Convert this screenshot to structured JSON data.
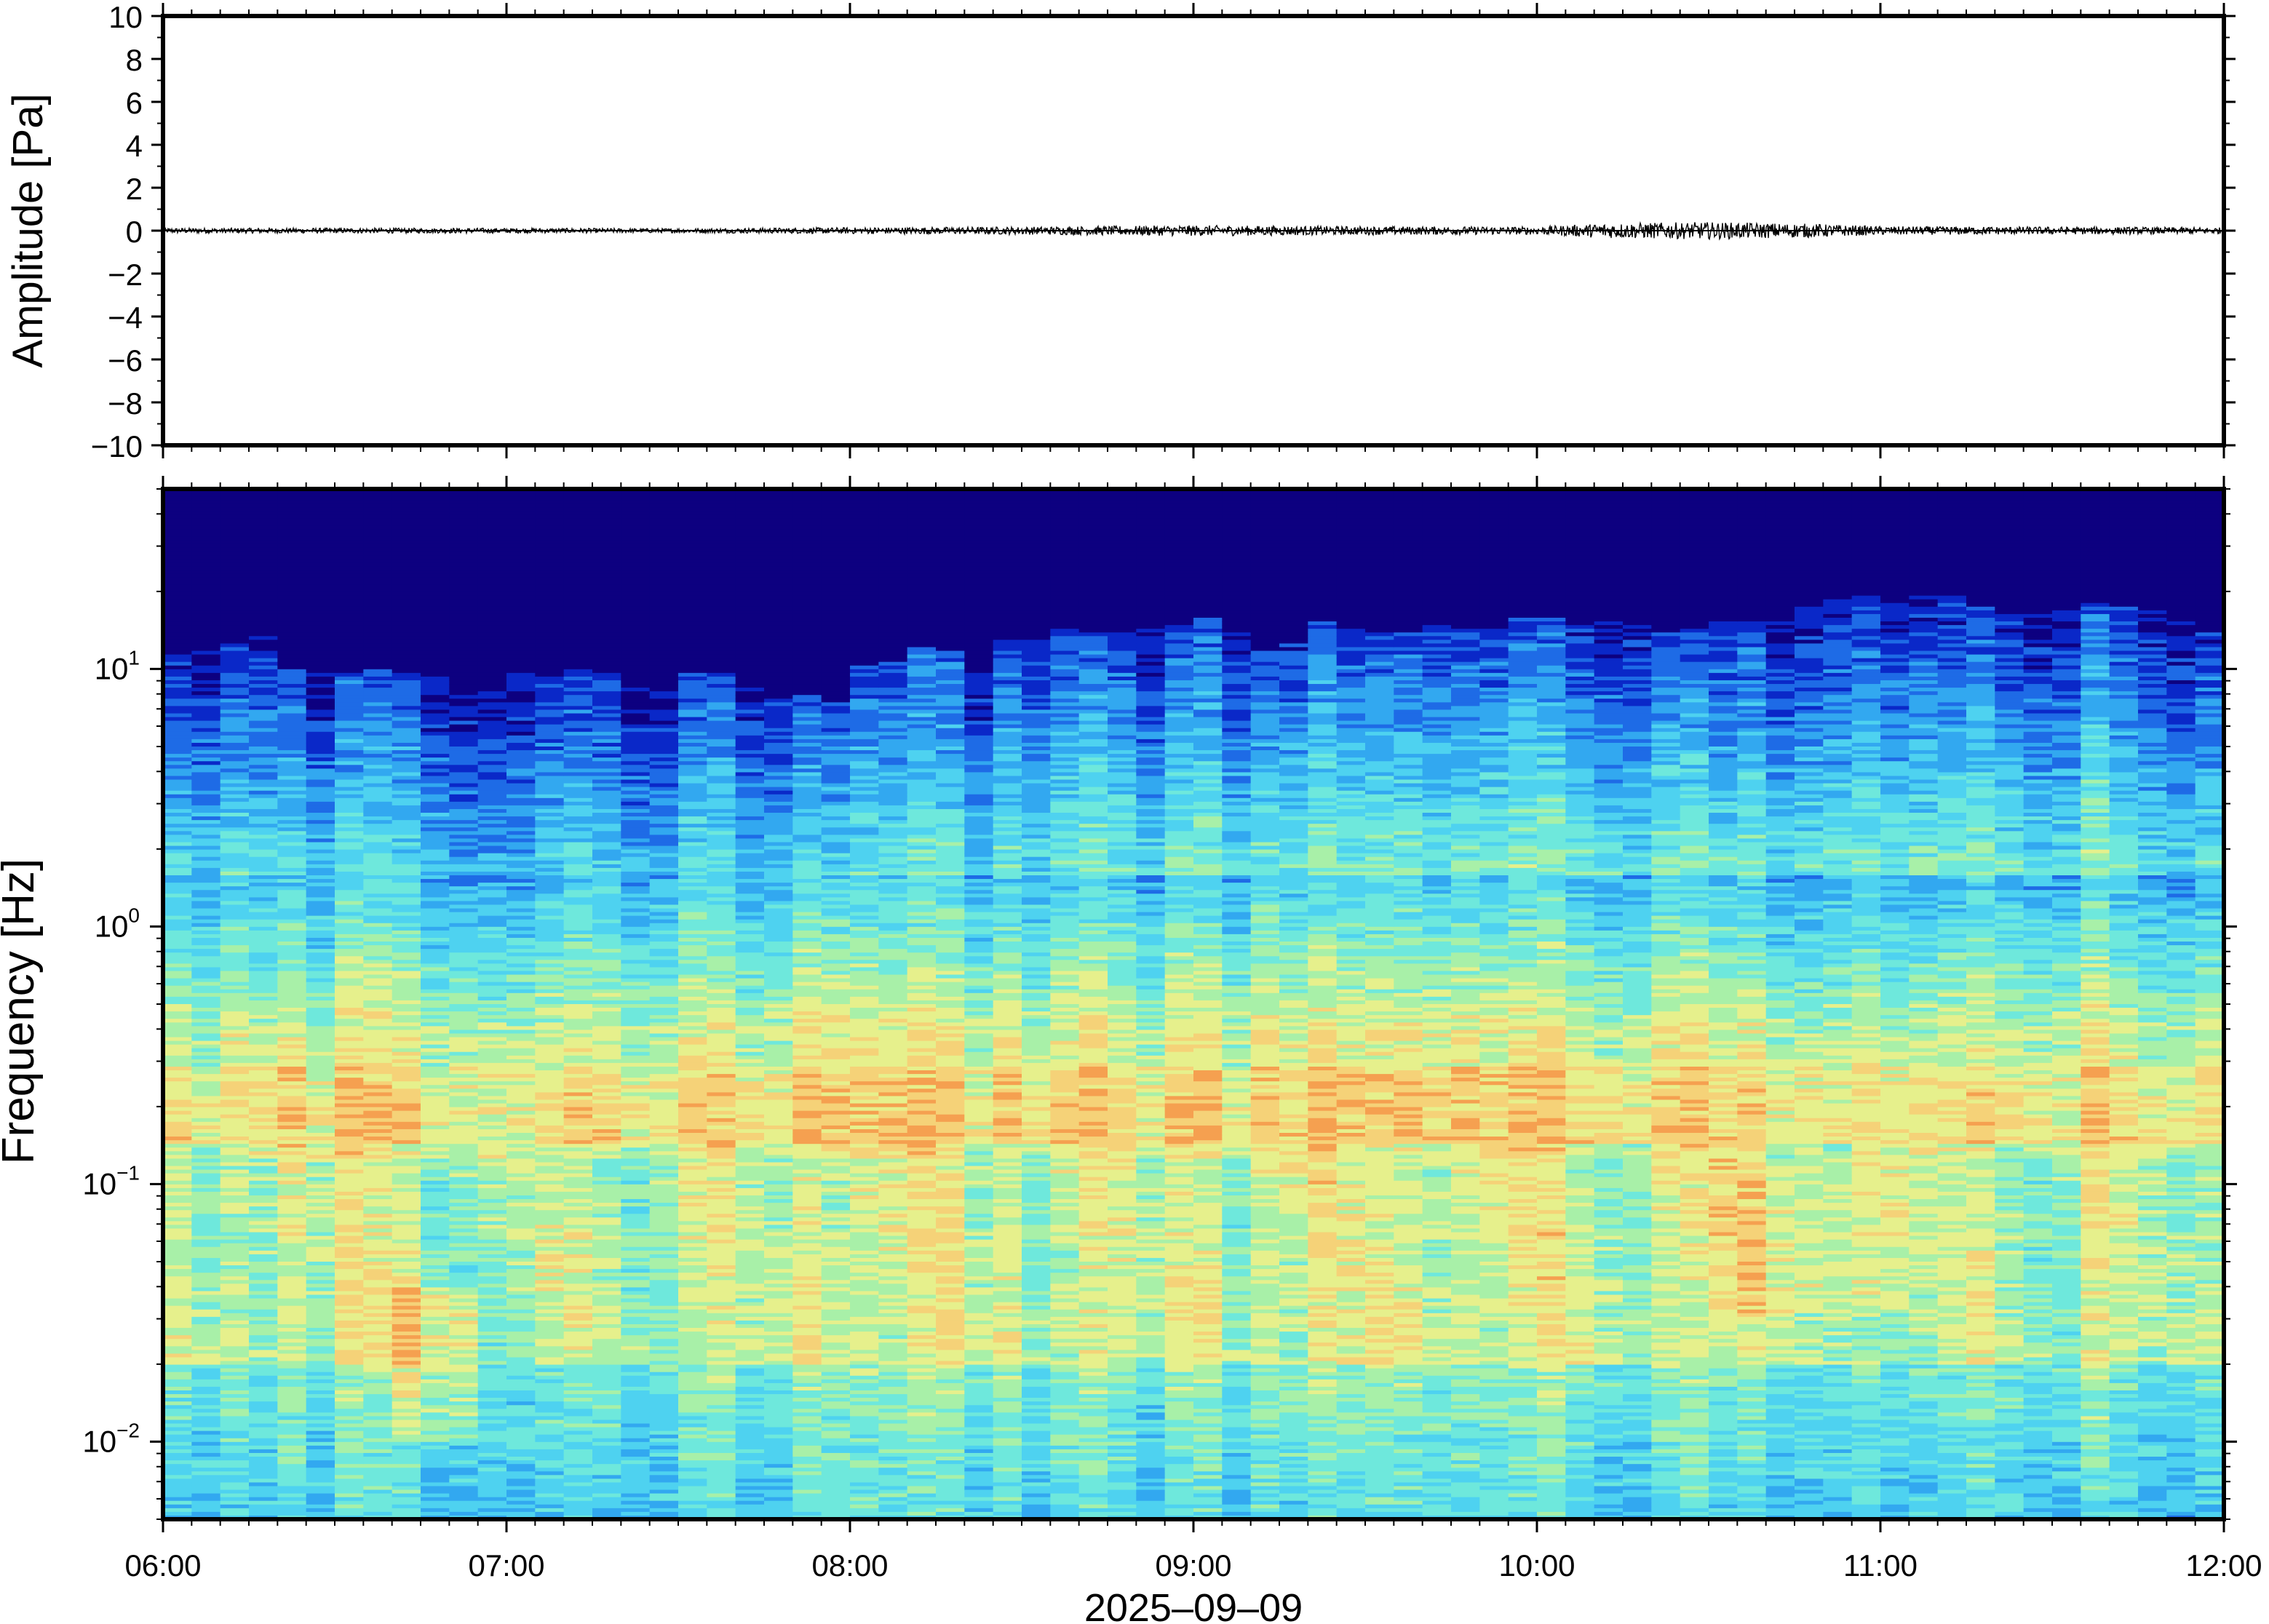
{
  "chart_data": [
    {
      "type": "line",
      "panel": "waveform",
      "title": "",
      "xlabel": "",
      "ylabel": "Amplitude [Pa]",
      "ylim": [
        -10,
        10
      ],
      "yticks": [
        10,
        8,
        6,
        4,
        2,
        0,
        -2,
        -4,
        -6,
        -8,
        -10
      ],
      "ytick_labels": [
        "10",
        "8",
        "6",
        "4",
        "2",
        "0",
        "−2",
        "−4",
        "−6",
        "−8",
        "−10"
      ],
      "series": [
        {
          "x_hours": [
            6.0,
            6.5,
            7.0,
            7.5,
            8.0,
            8.5,
            9.0,
            9.5,
            10.0,
            10.2,
            10.5,
            10.8,
            11.0,
            11.5,
            12.0
          ],
          "envelope_pa": [
            0.12,
            0.12,
            0.12,
            0.1,
            0.15,
            0.18,
            0.25,
            0.2,
            0.18,
            0.35,
            0.4,
            0.32,
            0.2,
            0.18,
            0.15
          ]
        }
      ],
      "grid": false
    },
    {
      "type": "heatmap",
      "panel": "spectrogram",
      "title": "",
      "xlabel": "2025–09–09",
      "ylabel": "Frequency [Hz]",
      "y_scale": "log",
      "ylim_hz": [
        0.005,
        50
      ],
      "xlim_hours": [
        6,
        12
      ],
      "x_tick_labels": [
        "06:00",
        "07:00",
        "08:00",
        "09:00",
        "10:00",
        "11:00",
        "12:00"
      ],
      "x_tick_hours": [
        6,
        7,
        8,
        9,
        10,
        11,
        12
      ],
      "y_tick_labels": [
        {
          "base": "10",
          "exp": "1",
          "value": 10
        },
        {
          "base": "10",
          "exp": "0",
          "value": 1
        },
        {
          "base": "10",
          "exp": "−1",
          "value": 0.1
        },
        {
          "base": "10",
          "exp": "−2",
          "value": 0.01
        }
      ],
      "colormap": [
        "#0d0080",
        "#0a28c8",
        "#1e6be6",
        "#32a8f0",
        "#4ed2f0",
        "#6ee8dc",
        "#a8f0a8",
        "#e6f08c",
        "#f5d278",
        "#f5a050"
      ],
      "time_columns": 72,
      "upper_edge_hz": [
        11.5,
        11.7,
        12.7,
        13.2,
        9.9,
        9.7,
        9.5,
        10,
        9.7,
        10.7,
        8.2,
        8.4,
        9.7,
        9.9,
        10,
        9.5,
        9.2,
        8.5,
        9.7,
        9.8,
        8.6,
        7.9,
        7.9,
        7.4,
        10.3,
        10.6,
        12.1,
        11.7,
        9.7,
        12.9,
        13.5,
        14.5,
        13.8,
        14,
        14.7,
        14.6,
        15.6,
        15.3,
        11.9,
        12.7,
        15.1,
        14.4,
        13.8,
        14,
        15,
        14.5,
        14.4,
        16,
        15.6,
        15.8,
        15.5,
        14.8,
        14,
        14.4,
        15.1,
        15.4,
        15.3,
        18.6,
        19.5,
        19.3,
        19.1,
        19.7,
        19.6,
        17.6,
        16.3,
        16.2,
        16.8,
        18.3,
        17.6,
        16.9,
        15.6,
        14.7
      ],
      "grid": false
    }
  ]
}
